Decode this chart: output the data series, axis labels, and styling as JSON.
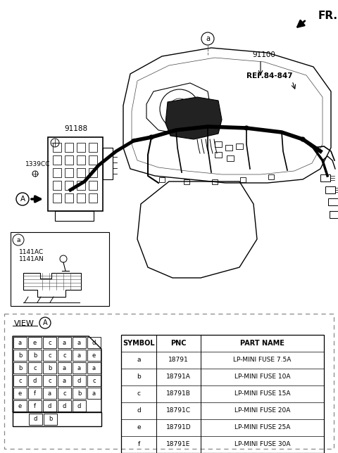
{
  "bg_color": "#ffffff",
  "table": {
    "headers": [
      "SYMBOL",
      "PNC",
      "PART NAME"
    ],
    "rows": [
      [
        "a",
        "18791",
        "LP-MINI FUSE 7.5A"
      ],
      [
        "b",
        "18791A",
        "LP-MINI FUSE 10A"
      ],
      [
        "c",
        "18791B",
        "LP-MINI FUSE 15A"
      ],
      [
        "d",
        "18791C",
        "LP-MINI FUSE 20A"
      ],
      [
        "e",
        "18791D",
        "LP-MINI FUSE 25A"
      ],
      [
        "f",
        "18791E",
        "LP-MINI FUSE 30A"
      ]
    ]
  },
  "fuse_grid": {
    "rows": [
      [
        "a",
        "e",
        "c",
        "a",
        "a",
        "d"
      ],
      [
        "b",
        "b",
        "c",
        "c",
        "a",
        "e"
      ],
      [
        "b",
        "c",
        "b",
        "a",
        "a",
        "a"
      ],
      [
        "c",
        "d",
        "c",
        "a",
        "d",
        "c"
      ],
      [
        "e",
        "f",
        "a",
        "c",
        "b",
        "a"
      ],
      [
        "e",
        "f",
        "d",
        "d",
        "d",
        ""
      ]
    ],
    "bottom": [
      "d",
      "b"
    ]
  }
}
